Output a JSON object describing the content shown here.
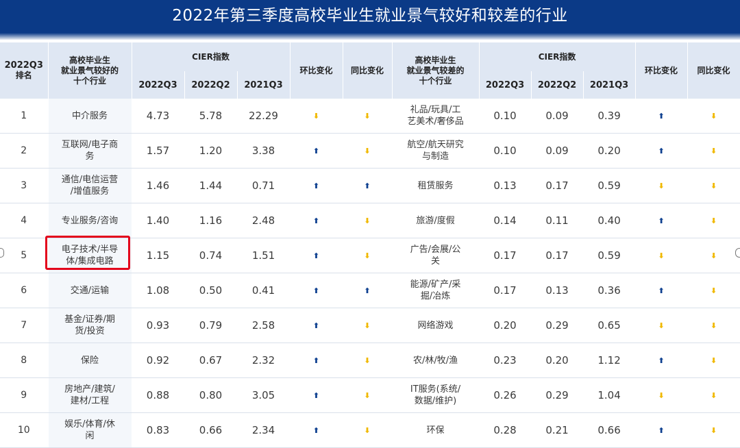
{
  "title": "2022年第三季度高校毕业生就业景气较好和较差的行业",
  "header": {
    "rank": [
      "2022Q3",
      "排名"
    ],
    "good_industry": [
      "高校毕业生",
      "就业景气较好的",
      "十个行业"
    ],
    "bad_industry": [
      "高校毕业生",
      "就业景气较差的",
      "十个行业"
    ],
    "cier_index": "CIER指数",
    "q2022q3": "2022Q3",
    "q2022q2": "2022Q2",
    "q2021q3": "2021Q3",
    "qoq": "环比变化",
    "yoy": "同比变化"
  },
  "colors": {
    "up": "#0d3f8f",
    "down": "#f0b800",
    "title_bg": "#0b3a87",
    "highlight": "#e3001b"
  },
  "rows": [
    {
      "rank": "1",
      "good": [
        "中介服务"
      ],
      "g1": "4.73",
      "g2": "5.78",
      "g3": "22.29",
      "gqoq": "down",
      "gyoy": "down",
      "bad": [
        "礼品/玩具/工",
        "艺美术/奢侈品"
      ],
      "b1": "0.10",
      "b2": "0.09",
      "b3": "0.39",
      "bqoq": "up",
      "byoy": "down"
    },
    {
      "rank": "2",
      "good": [
        "互联网/电子商",
        "务"
      ],
      "g1": "1.57",
      "g2": "1.20",
      "g3": "3.38",
      "gqoq": "up",
      "gyoy": "down",
      "bad": [
        "航空/航天研究",
        "与制造"
      ],
      "b1": "0.10",
      "b2": "0.09",
      "b3": "0.20",
      "bqoq": "up",
      "byoy": "down"
    },
    {
      "rank": "3",
      "good": [
        "通信/电信运营",
        "/增值服务"
      ],
      "g1": "1.46",
      "g2": "1.44",
      "g3": "0.71",
      "gqoq": "up",
      "gyoy": "up",
      "bad": [
        "租赁服务"
      ],
      "b1": "0.13",
      "b2": "0.17",
      "b3": "0.59",
      "bqoq": "down",
      "byoy": "down"
    },
    {
      "rank": "4",
      "good": [
        "专业服务/咨询"
      ],
      "g1": "1.40",
      "g2": "1.16",
      "g3": "2.48",
      "gqoq": "up",
      "gyoy": "down",
      "bad": [
        "旅游/度假"
      ],
      "b1": "0.14",
      "b2": "0.11",
      "b3": "0.40",
      "bqoq": "up",
      "byoy": "down"
    },
    {
      "rank": "5",
      "good": [
        "电子技术/半导",
        "体/集成电路"
      ],
      "g1": "1.15",
      "g2": "0.74",
      "g3": "1.51",
      "gqoq": "up",
      "gyoy": "down",
      "bad": [
        "广告/会展/公",
        "关"
      ],
      "b1": "0.17",
      "b2": "0.17",
      "b3": "0.59",
      "bqoq": "down",
      "byoy": "down"
    },
    {
      "rank": "6",
      "good": [
        "交通/运输"
      ],
      "g1": "1.08",
      "g2": "0.50",
      "g3": "0.41",
      "gqoq": "up",
      "gyoy": "up",
      "bad": [
        "能源/矿产/采",
        "掘/冶炼"
      ],
      "b1": "0.17",
      "b2": "0.13",
      "b3": "0.36",
      "bqoq": "up",
      "byoy": "down"
    },
    {
      "rank": "7",
      "good": [
        "基金/证券/期",
        "货/投资"
      ],
      "g1": "0.93",
      "g2": "0.79",
      "g3": "2.58",
      "gqoq": "up",
      "gyoy": "down",
      "bad": [
        "网络游戏"
      ],
      "b1": "0.20",
      "b2": "0.29",
      "b3": "0.65",
      "bqoq": "down",
      "byoy": "down"
    },
    {
      "rank": "8",
      "good": [
        "保险"
      ],
      "g1": "0.92",
      "g2": "0.67",
      "g3": "2.32",
      "gqoq": "up",
      "gyoy": "down",
      "bad": [
        "农/林/牧/渔"
      ],
      "b1": "0.23",
      "b2": "0.20",
      "b3": "1.12",
      "bqoq": "up",
      "byoy": "down"
    },
    {
      "rank": "9",
      "good": [
        "房地产/建筑/",
        "建材/工程"
      ],
      "g1": "0.88",
      "g2": "0.80",
      "g3": "3.05",
      "gqoq": "up",
      "gyoy": "down",
      "bad": [
        "IT服务(系统/",
        "数据/维护)"
      ],
      "b1": "0.26",
      "b2": "0.29",
      "b3": "1.04",
      "bqoq": "down",
      "byoy": "down"
    },
    {
      "rank": "10",
      "good": [
        "娱乐/体育/休",
        "闲"
      ],
      "g1": "0.83",
      "g2": "0.66",
      "g3": "2.34",
      "gqoq": "up",
      "gyoy": "down",
      "bad": [
        "环保"
      ],
      "b1": "0.28",
      "b2": "0.21",
      "b3": "0.66",
      "bqoq": "up",
      "byoy": "down"
    }
  ]
}
